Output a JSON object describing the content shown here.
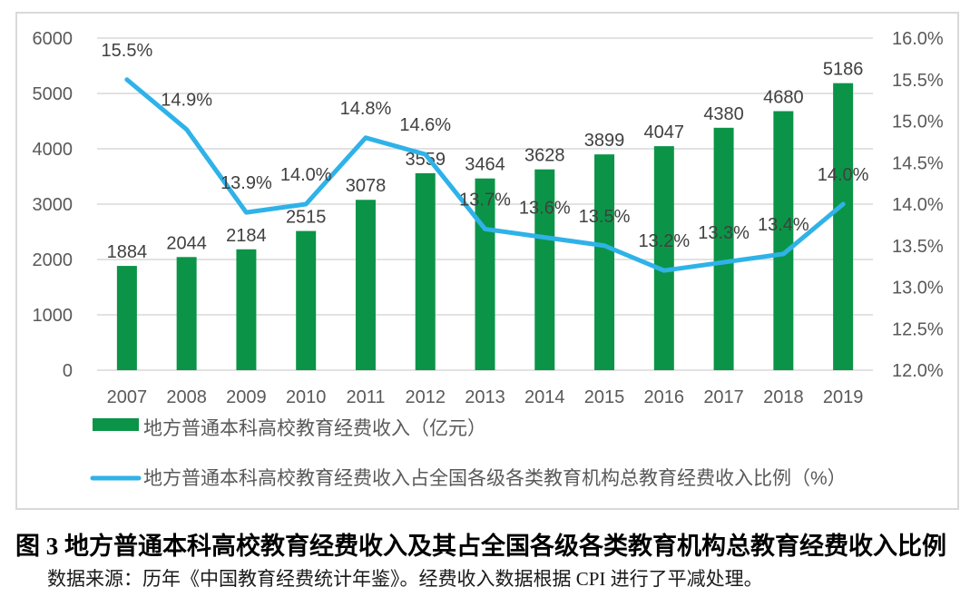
{
  "figure": {
    "caption": "图 3 地方普通本科高校教育经费收入及其占全国各级各类教育机构总教育经费收入比例",
    "source_note": "数据来源：历年《中国教育经费统计年鉴》。经费收入数据根据 CPI 进行了平减处理。"
  },
  "colors": {
    "bar": "#0B9447",
    "line": "#2FB2E8",
    "grid": "#D9D9D9",
    "border": "#D9D9D9",
    "axis_text": "#595959",
    "data_label": "#404040",
    "legend_text": "#595959",
    "background": "#FFFFFF"
  },
  "chart_data": {
    "type": "combo",
    "title": "",
    "categories": [
      "2007",
      "2008",
      "2009",
      "2010",
      "2011",
      "2012",
      "2013",
      "2014",
      "2015",
      "2016",
      "2017",
      "2018",
      "2019"
    ],
    "series": [
      {
        "name": "地方普通本科高校教育经费收入（亿元）",
        "type": "bar",
        "axis": "left",
        "values": [
          1884,
          2044,
          2184,
          2515,
          3078,
          3559,
          3464,
          3628,
          3899,
          4047,
          4380,
          4680,
          5186
        ],
        "labels": [
          "1884",
          "2044",
          "2184",
          "2515",
          "3078",
          "3559",
          "3464",
          "3628",
          "3899",
          "4047",
          "4380",
          "4680",
          "5186"
        ]
      },
      {
        "name": "地方普通本科高校教育经费收入占全国各级各类教育机构总教育经费收入比例（%）",
        "type": "line",
        "axis": "right",
        "values": [
          15.5,
          14.9,
          13.9,
          14.0,
          14.8,
          14.6,
          13.7,
          13.6,
          13.5,
          13.2,
          13.3,
          13.4,
          14.0
        ],
        "labels": [
          "15.5%",
          "14.9%",
          "13.9%",
          "14.0%",
          "14.8%",
          "14.6%",
          "13.7%",
          "13.6%",
          "13.5%",
          "13.2%",
          "13.3%",
          "13.4%",
          "14.0%"
        ]
      }
    ],
    "left_axis": {
      "min": 0,
      "max": 6000,
      "step": 1000,
      "ticks": [
        "0",
        "1000",
        "2000",
        "3000",
        "4000",
        "5000",
        "6000"
      ]
    },
    "right_axis": {
      "min": 12.0,
      "max": 16.0,
      "step": 0.5,
      "ticks": [
        "12.0%",
        "12.5%",
        "13.0%",
        "13.5%",
        "14.0%",
        "14.5%",
        "15.0%",
        "15.5%",
        "16.0%"
      ]
    },
    "grid": true,
    "legend_position": "bottom-left"
  }
}
